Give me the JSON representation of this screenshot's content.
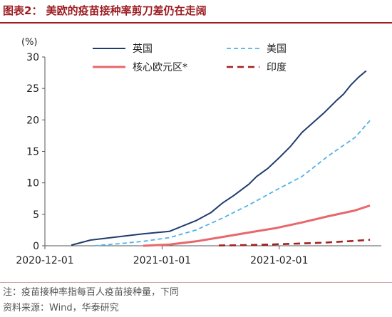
{
  "figure": {
    "title": "图表2：  美欧的疫苗接种率剪刀差仍在走阔",
    "note": "注：疫苗接种率指每百人疫苗接种量，下同",
    "source": "资料来源：Wind，华泰研究"
  },
  "chart_data": {
    "type": "line",
    "unit_label": "(%)",
    "ylim": [
      0,
      30
    ],
    "yticks": [
      0,
      5,
      10,
      15,
      20,
      25,
      30
    ],
    "xlim": [
      "2020-12-01",
      "2021-02-28"
    ],
    "xticks": [
      "2020-12-01",
      "2021-01-01",
      "2021-02-01"
    ],
    "grid": false,
    "legend_position": "top",
    "series": [
      {
        "name": "英国",
        "color": "#1f3c6e",
        "dash": "solid",
        "x": [
          "2020-12-08",
          "2020-12-13",
          "2020-12-20",
          "2020-12-27",
          "2021-01-03",
          "2021-01-10",
          "2021-01-14",
          "2021-01-17",
          "2021-01-20",
          "2021-01-24",
          "2021-01-26",
          "2021-01-29",
          "2021-02-01",
          "2021-02-04",
          "2021-02-07",
          "2021-02-10",
          "2021-02-13",
          "2021-02-16",
          "2021-02-18",
          "2021-02-20",
          "2021-02-22",
          "2021-02-24"
        ],
        "values": [
          0.1,
          0.9,
          1.4,
          1.9,
          2.3,
          4.0,
          5.3,
          6.8,
          8.0,
          9.8,
          11.0,
          12.3,
          14.0,
          15.8,
          18.0,
          19.6,
          21.2,
          23.0,
          24.1,
          25.6,
          26.8,
          27.8
        ]
      },
      {
        "name": "美国",
        "color": "#4fb3e6",
        "dash": "dashed",
        "x": [
          "2020-12-14",
          "2020-12-20",
          "2020-12-27",
          "2021-01-03",
          "2021-01-10",
          "2021-01-17",
          "2021-01-24",
          "2021-01-31",
          "2021-02-07",
          "2021-02-14",
          "2021-02-21",
          "2021-02-25"
        ],
        "values": [
          0.0,
          0.3,
          0.7,
          1.3,
          2.5,
          4.4,
          6.5,
          8.8,
          11.0,
          14.3,
          17.2,
          19.9
        ]
      },
      {
        "name": "核心欧元区*",
        "color": "#e8676c",
        "dash": "solid",
        "x": [
          "2020-12-27",
          "2021-01-03",
          "2021-01-10",
          "2021-01-17",
          "2021-01-24",
          "2021-01-31",
          "2021-02-07",
          "2021-02-14",
          "2021-02-21",
          "2021-02-25"
        ],
        "values": [
          0.0,
          0.2,
          0.7,
          1.4,
          2.1,
          2.8,
          3.7,
          4.7,
          5.6,
          6.4
        ]
      },
      {
        "name": "印度",
        "color": "#a31f1f",
        "dash": "dashed",
        "x": [
          "2021-01-16",
          "2021-01-23",
          "2021-01-30",
          "2021-02-06",
          "2021-02-13",
          "2021-02-20",
          "2021-02-25"
        ],
        "values": [
          0.05,
          0.1,
          0.2,
          0.35,
          0.5,
          0.75,
          0.95
        ]
      }
    ]
  }
}
